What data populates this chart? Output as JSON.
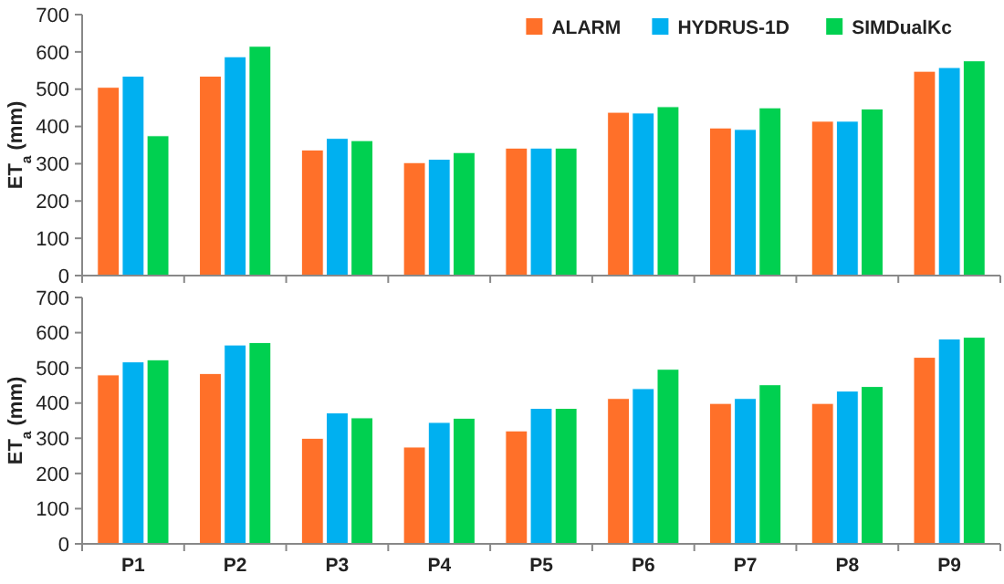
{
  "chart_data": [
    {
      "type": "bar",
      "ylabel": "ET$_{a}$ (mm)",
      "categories": [
        null,
        null,
        null,
        null,
        null,
        null,
        null,
        null,
        null
      ],
      "tick_labels": "y",
      "ylim": [
        0,
        700
      ],
      "yticks": [
        0,
        100,
        200,
        300,
        400,
        500,
        600,
        700
      ],
      "legend": "top right",
      "grid": false,
      "series": [
        {
          "name": "ALARM",
          "color": "#ff7029",
          "values": [
            505,
            535,
            337,
            303,
            342,
            438,
            396,
            414,
            548
          ]
        },
        {
          "name": "HYDRUS-1D",
          "color": "#00b0f0",
          "values": [
            535,
            587,
            368,
            312,
            342,
            436,
            392,
            414,
            558
          ]
        },
        {
          "name": "SIMDualKc",
          "color": "#00d050",
          "values": [
            375,
            615,
            362,
            330,
            342,
            453,
            450,
            447,
            576
          ]
        }
      ]
    },
    {
      "type": "bar",
      "ylabel": "ET$_{a}$ (mm)",
      "categories": [
        "P1",
        "P2",
        "P3",
        "P4",
        "P5",
        "P6",
        "P7",
        "P8",
        "P9"
      ],
      "ylim": [
        0,
        700
      ],
      "yticks": [
        0,
        100,
        200,
        300,
        400,
        500,
        600,
        700
      ],
      "legend": false,
      "grid": false,
      "series": [
        {
          "color": "#ff7029",
          "values": [
            480,
            484,
            300,
            275,
            321,
            413,
            399,
            399,
            530
          ]
        },
        {
          "color": "#00b0f0",
          "values": [
            517,
            565,
            372,
            345,
            385,
            441,
            413,
            434,
            582
          ]
        },
        {
          "color": "#00d050",
          "values": [
            523,
            572,
            358,
            357,
            385,
            496,
            452,
            447,
            587
          ]
        }
      ]
    }
  ]
}
